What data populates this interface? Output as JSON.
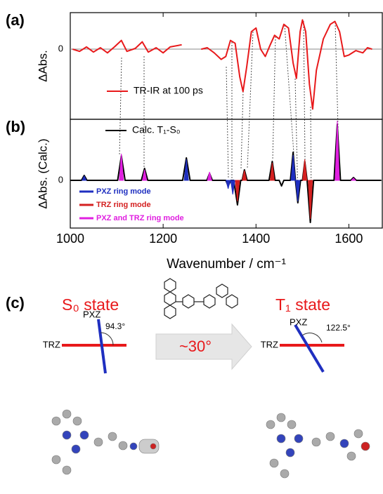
{
  "chart_data": [
    {
      "type": "line",
      "panel": "(a)",
      "ylabel": "ΔAbs.",
      "xlim": [
        1000,
        1672
      ],
      "ylim": [
        -0.96,
        0.5
      ],
      "yticks": [
        0
      ],
      "grid": true,
      "series": [
        {
          "name": "TR-IR at 100 ps",
          "color": "#e8191b",
          "style": "curve",
          "x": [
            1005,
            1020,
            1035,
            1050,
            1065,
            1080,
            1095,
            1110,
            1122,
            1140,
            1155,
            1168,
            1185,
            1200,
            1215,
            1240,
            1260,
            1282,
            1295,
            1310,
            1325,
            1335,
            1345,
            1355,
            1365,
            1372,
            1380,
            1390,
            1400,
            1410,
            1420,
            1430,
            1440,
            1450,
            1460,
            1470,
            1480,
            1487,
            1495,
            1500,
            1507,
            1515,
            1522,
            1530,
            1545,
            1560,
            1570,
            1580,
            1590,
            1600,
            1615,
            1630,
            1640,
            1650
          ],
          "values": [
            0,
            -0.03,
            0.03,
            -0.04,
            0.02,
            -0.05,
            0.03,
            0.12,
            -0.03,
            0.01,
            0.1,
            -0.04,
            0.02,
            -0.05,
            0.03,
            0.06,
            null,
            0,
            0.02,
            -0.05,
            -0.14,
            -0.1,
            0.12,
            0.08,
            -0.38,
            -0.58,
            -0.24,
            0.24,
            0.29,
            0,
            -0.1,
            0.05,
            0.19,
            0.14,
            0.34,
            0.29,
            -0.19,
            -0.4,
            0.24,
            0.4,
            0.24,
            -0.48,
            -0.82,
            -0.29,
            0.14,
            0.34,
            0.38,
            0.24,
            -0.1,
            -0.08,
            -0.02,
            -0.05,
            0.02,
            0
          ]
        }
      ]
    },
    {
      "type": "line",
      "panel": "(b)",
      "ylabel": "ΔAbs. (Calc.)",
      "xlabel": "Wavenumber / cm⁻¹",
      "xlim": [
        1000,
        1672
      ],
      "ylim": [
        -0.68,
        0.87
      ],
      "yticks": [
        0
      ],
      "xticks": [
        1000,
        1200,
        1400,
        1600
      ],
      "series": [
        {
          "name": "Calc. T₁-S₀",
          "color": "#000000",
          "style": "curve",
          "x": [
            1000,
            1024,
            1030,
            1036,
            1102,
            1110,
            1118,
            1153,
            1160,
            1167,
            1242,
            1250,
            1258,
            1294,
            1300,
            1306,
            1335,
            1340,
            1346,
            1352,
            1360,
            1367,
            1370,
            1375,
            1381,
            1428,
            1435,
            1441,
            1450,
            1455,
            1460,
            1474,
            1480,
            1485,
            1490,
            1496,
            1500,
            1505,
            1510,
            1517,
            1524,
            1568,
            1575,
            1582,
            1604,
            1610,
            1616,
            1670
          ],
          "values": [
            0,
            0,
            0.07,
            0,
            0,
            0.35,
            0,
            0,
            0.17,
            0,
            0,
            0.32,
            0,
            0,
            0.1,
            0,
            0,
            -0.08,
            0,
            0,
            -0.35,
            0,
            0,
            0.15,
            0,
            0,
            0.27,
            0,
            0,
            -0.08,
            0,
            0,
            0.4,
            0,
            -0.32,
            0,
            0,
            0.27,
            0,
            -0.6,
            0,
            0,
            0.8,
            0,
            0,
            0.04,
            0,
            0
          ]
        },
        {
          "name": "PXZ ring mode",
          "color": "#1f2fc0",
          "style": "stick",
          "x": [
            1030,
            1250,
            1340,
            1350,
            1480,
            1490
          ],
          "values": [
            0.06,
            0.3,
            -0.12,
            -0.2,
            0.36,
            -0.3
          ]
        },
        {
          "name": "TRZ ring mode",
          "color": "#d42020",
          "style": "stick",
          "x": [
            1360,
            1375,
            1435,
            1505,
            1517
          ],
          "values": [
            -0.3,
            0.14,
            0.25,
            0.3,
            -0.55
          ]
        },
        {
          "name": "PXZ and TRZ ring mode",
          "color": "#e020e0",
          "style": "stick",
          "x": [
            1110,
            1160,
            1300,
            1575,
            1610
          ],
          "values": [
            0.38,
            0.15,
            0.12,
            0.85,
            0.03
          ]
        }
      ]
    }
  ],
  "panel_c": {
    "label": "(c)",
    "arrow": "~30°",
    "left": {
      "title": "S₀ state",
      "pxz": "PXZ",
      "trz": "TRZ",
      "angle": "94.3°"
    },
    "right": {
      "title": "T₁ state",
      "pxz": "PXZ",
      "trz": "TRZ",
      "angle": "122.5°"
    }
  }
}
